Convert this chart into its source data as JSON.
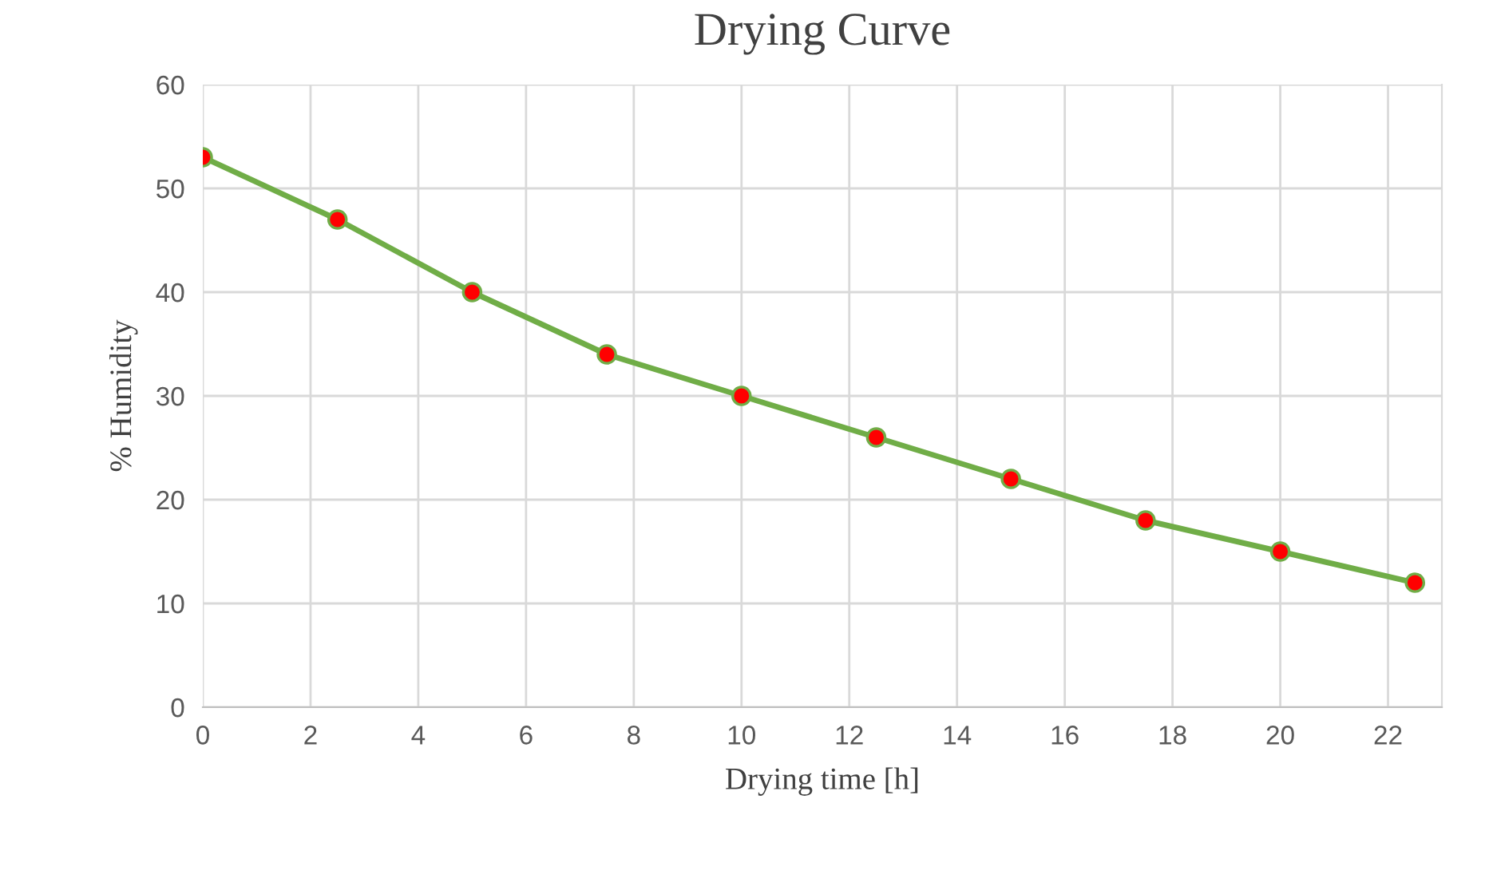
{
  "chart_data": {
    "type": "line",
    "title": "Drying Curve",
    "xlabel": "Drying time [h]",
    "ylabel": "% Humidity",
    "x": [
      0,
      2.5,
      5,
      7.5,
      10,
      12.5,
      15,
      17.5,
      20,
      22.5
    ],
    "series": [
      {
        "color": "#70ad47",
        "values": [
          53,
          47,
          40,
          34,
          30,
          26,
          22,
          18,
          15,
          12
        ]
      }
    ],
    "marker": "circle",
    "line_style": "solid",
    "grid": true,
    "xlim": [
      0,
      23
    ],
    "xticks": [
      0,
      2,
      4,
      6,
      8,
      10,
      12,
      14,
      16,
      18,
      20,
      22
    ],
    "ylim": [
      0,
      60
    ],
    "yticks": [
      0,
      10,
      20,
      30,
      40,
      50,
      60
    ]
  }
}
